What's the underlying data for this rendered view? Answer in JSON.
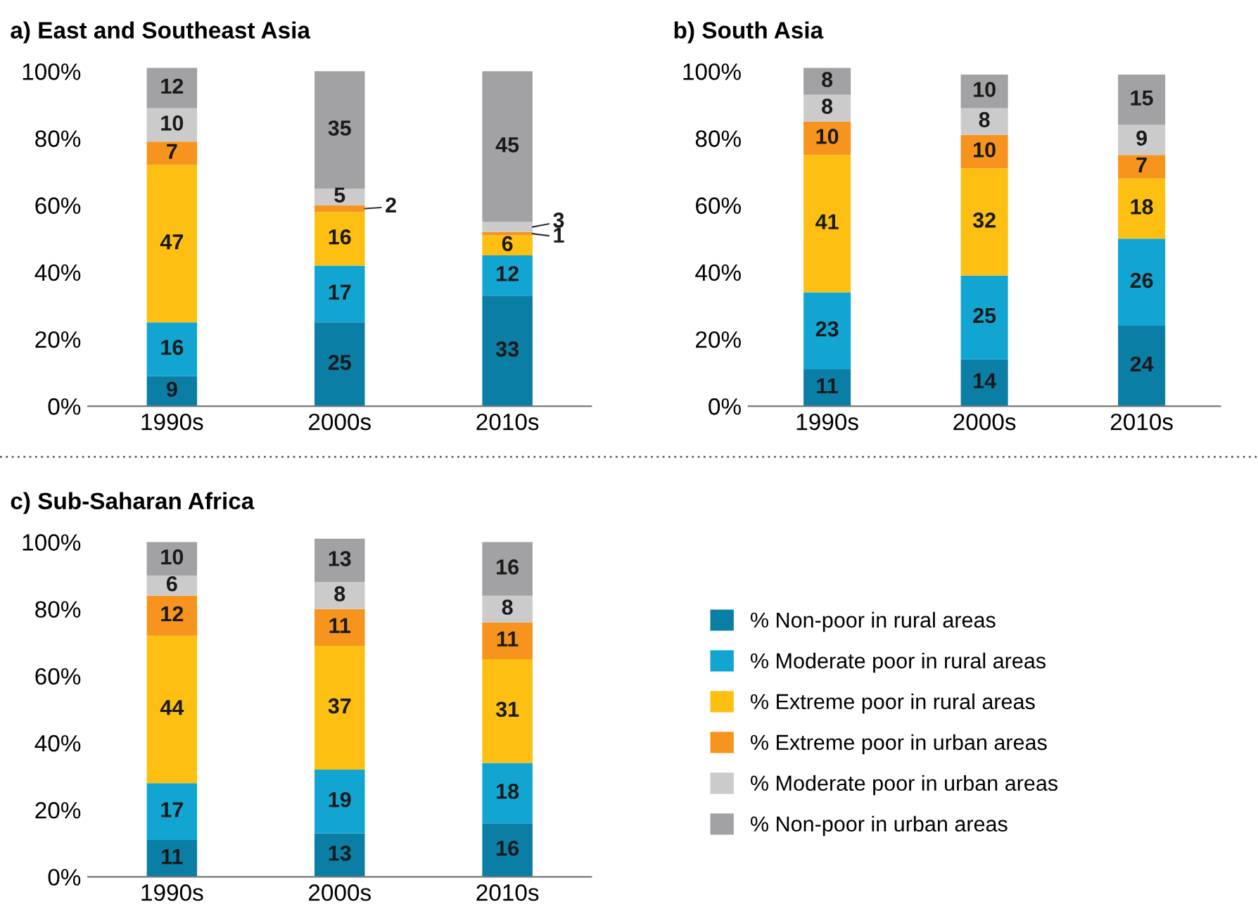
{
  "chart_data": [
    {
      "type": "bar",
      "title": "a) East and Southeast Asia",
      "stacked": true,
      "data_labels": true,
      "legend": false,
      "grid": false,
      "categories": [
        "1990s",
        "2000s",
        "2010s"
      ],
      "ylim": [
        0,
        102
      ],
      "yticks": [
        {
          "value": 0,
          "label": "0%"
        },
        {
          "value": 20,
          "label": "20%"
        },
        {
          "value": 40,
          "label": "40%"
        },
        {
          "value": 60,
          "label": "60%"
        },
        {
          "value": 80,
          "label": "80%"
        },
        {
          "value": 100,
          "label": "100%"
        }
      ],
      "series": [
        {
          "color": "#0b7ea6",
          "values": [
            9,
            25,
            33
          ]
        },
        {
          "color": "#12a5d2",
          "values": [
            16,
            17,
            12
          ]
        },
        {
          "color": "#fdc012",
          "values": [
            47,
            16,
            6
          ]
        },
        {
          "color": "#f7941e",
          "values": [
            7,
            2,
            1
          ]
        },
        {
          "color": "#cbcbcc",
          "values": [
            10,
            5,
            3
          ]
        },
        {
          "color": "#a2a2a4",
          "values": [
            12,
            35,
            45
          ]
        }
      ]
    },
    {
      "type": "bar",
      "title": "b) South Asia",
      "stacked": true,
      "data_labels": true,
      "legend": false,
      "grid": false,
      "categories": [
        "1990s",
        "2000s",
        "2010s"
      ],
      "ylim": [
        0,
        102
      ],
      "yticks": [
        {
          "value": 0,
          "label": "0%"
        },
        {
          "value": 20,
          "label": "20%"
        },
        {
          "value": 40,
          "label": "40%"
        },
        {
          "value": 60,
          "label": "60%"
        },
        {
          "value": 80,
          "label": "80%"
        },
        {
          "value": 100,
          "label": "100%"
        }
      ],
      "series": [
        {
          "color": "#0b7ea6",
          "values": [
            11,
            14,
            24
          ]
        },
        {
          "color": "#12a5d2",
          "values": [
            23,
            25,
            26
          ]
        },
        {
          "color": "#fdc012",
          "values": [
            41,
            32,
            18
          ]
        },
        {
          "color": "#f7941e",
          "values": [
            10,
            10,
            7
          ]
        },
        {
          "color": "#cbcbcc",
          "values": [
            8,
            8,
            9
          ]
        },
        {
          "color": "#a2a2a4",
          "values": [
            8,
            10,
            15
          ]
        }
      ]
    },
    {
      "type": "bar",
      "title": "c) Sub-Saharan Africa",
      "stacked": true,
      "data_labels": true,
      "legend": "right",
      "grid": false,
      "categories": [
        "1990s",
        "2000s",
        "2010s"
      ],
      "ylim": [
        0,
        102
      ],
      "yticks": [
        {
          "value": 0,
          "label": "0%"
        },
        {
          "value": 20,
          "label": "20%"
        },
        {
          "value": 40,
          "label": "40%"
        },
        {
          "value": 60,
          "label": "60%"
        },
        {
          "value": 80,
          "label": "80%"
        },
        {
          "value": 100,
          "label": "100%"
        }
      ],
      "series": [
        {
          "name": "% Non-poor in rural areas",
          "color": "#0b7ea6",
          "values": [
            11,
            13,
            16
          ]
        },
        {
          "name": "% Moderate poor in rural areas",
          "color": "#12a5d2",
          "values": [
            17,
            19,
            18
          ]
        },
        {
          "name": "% Extreme poor in rural areas",
          "color": "#fdc012",
          "values": [
            44,
            37,
            31
          ]
        },
        {
          "name": "% Extreme poor in urban areas",
          "color": "#f7941e",
          "values": [
            12,
            11,
            11
          ]
        },
        {
          "name": "% Moderate poor in urban areas",
          "color": "#cbcbcc",
          "values": [
            6,
            8,
            8
          ]
        },
        {
          "name": "% Non-poor in urban areas",
          "color": "#a2a2a4",
          "values": [
            10,
            13,
            16
          ]
        }
      ]
    }
  ]
}
